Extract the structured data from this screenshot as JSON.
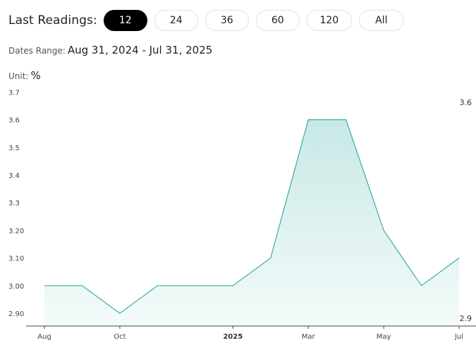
{
  "toolbar": {
    "label": "Last Readings:",
    "buttons": [
      "12",
      "24",
      "36",
      "60",
      "120",
      "All"
    ],
    "active": "12"
  },
  "dates_range": {
    "label": "Dates Range:",
    "value": "Aug 31, 2024 - Jul 31, 2025"
  },
  "unit": {
    "label": "Unit:",
    "value": "%"
  },
  "colors": {
    "line": "#3aaea0",
    "fill_top": "#c8e8e6",
    "fill_bottom": "#f4fbfa",
    "active_button": "#000000"
  },
  "chart_data": {
    "type": "area",
    "x": [
      "2024-08-31",
      "2024-09-30",
      "2024-10-31",
      "2024-11-30",
      "2024-12-31",
      "2025-01-31",
      "2025-02-28",
      "2025-03-31",
      "2025-04-30",
      "2025-05-31",
      "2025-06-30",
      "2025-07-31"
    ],
    "series": [
      {
        "values": [
          3.0,
          3.0,
          2.9,
          3.0,
          3.0,
          3.0,
          3.1,
          3.6,
          3.6,
          3.2,
          3.0,
          3.1
        ]
      }
    ],
    "ylim": [
      2.87,
      3.7
    ],
    "y_ticks": [
      {
        "value": 2.9,
        "label": "2.90"
      },
      {
        "value": 3.0,
        "label": "3.00"
      },
      {
        "value": 3.1,
        "label": "3.10"
      },
      {
        "value": 3.2,
        "label": "3.20"
      },
      {
        "value": 3.3,
        "label": "3.3"
      },
      {
        "value": 3.4,
        "label": "3.4"
      },
      {
        "value": 3.5,
        "label": "3.5"
      },
      {
        "value": 3.6,
        "label": "3.6"
      },
      {
        "value": 3.7,
        "label": "3.7"
      }
    ],
    "x_ticks": [
      {
        "index": 0,
        "label": "Aug",
        "bold": false
      },
      {
        "index": 2,
        "label": "Oct",
        "bold": false
      },
      {
        "index": 5,
        "label": "2025",
        "bold": true
      },
      {
        "index": 7,
        "label": "Mar",
        "bold": false
      },
      {
        "index": 9,
        "label": "May",
        "bold": false
      },
      {
        "index": 11,
        "label": "Jul",
        "bold": false
      }
    ],
    "max_label": "3.6",
    "min_label": "2.9",
    "grid": false
  }
}
